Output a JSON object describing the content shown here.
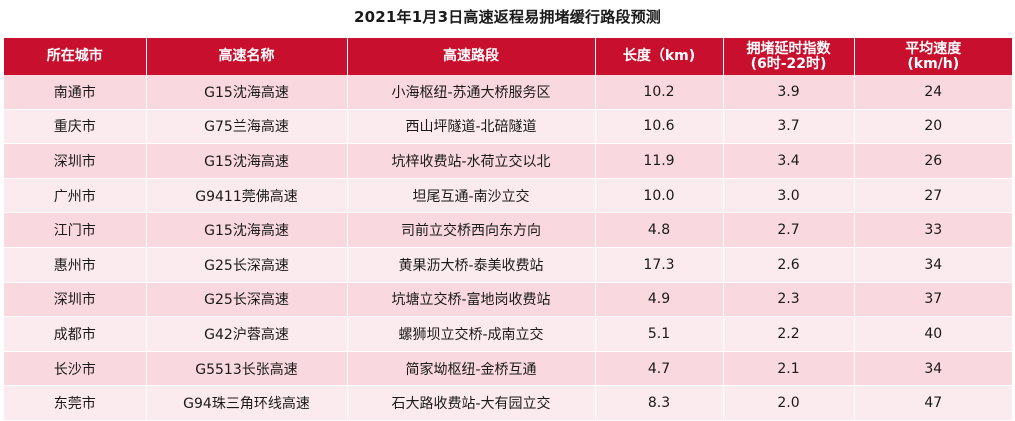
{
  "title": "2021年1月3日高速返程易拥堵缓行路段预测",
  "table": {
    "headers": [
      {
        "line1": "所在城市",
        "line2": ""
      },
      {
        "line1": "高速名称",
        "line2": ""
      },
      {
        "line1": "高速路段",
        "line2": ""
      },
      {
        "line1": "长度（km)",
        "line2": ""
      },
      {
        "line1": "拥堵延时指数",
        "line2": "(6时-22时)"
      },
      {
        "line1": "平均速度",
        "line2": "(km/h)"
      }
    ],
    "rows": [
      [
        "南通市",
        "G15沈海高速",
        "小海枢纽-苏通大桥服务区",
        "10.2",
        "3.9",
        "24"
      ],
      [
        "重庆市",
        "G75兰海高速",
        "西山坪隧道-北碚隧道",
        "10.6",
        "3.7",
        "20"
      ],
      [
        "深圳市",
        "G15沈海高速",
        "坑梓收费站-水荷立交以北",
        "11.9",
        "3.4",
        "26"
      ],
      [
        "广州市",
        "G9411莞佛高速",
        "坦尾互通-南沙立交",
        "10.0",
        "3.0",
        "27"
      ],
      [
        "江门市",
        "G15沈海高速",
        "司前立交桥西向东方向",
        "4.8",
        "2.7",
        "33"
      ],
      [
        "惠州市",
        "G25长深高速",
        "黄果沥大桥-泰美收费站",
        "17.3",
        "2.6",
        "34"
      ],
      [
        "深圳市",
        "G25长深高速",
        "坑塘立交桥-富地岗收费站",
        "4.9",
        "2.3",
        "37"
      ],
      [
        "成都市",
        "G42沪蓉高速",
        "螺狮坝立交桥-成南立交",
        "5.1",
        "2.2",
        "40"
      ],
      [
        "长沙市",
        "G5513长张高速",
        "简家坳枢纽-金桥互通",
        "4.7",
        "2.1",
        "34"
      ],
      [
        "东莞市",
        "G94珠三角环线高速",
        "石大路收费站-大有园立交",
        "8.3",
        "2.0",
        "47"
      ]
    ]
  },
  "colors": {
    "header_bg": "#c8102e",
    "row_odd": "#f9d9df",
    "row_even": "#fcebee"
  }
}
